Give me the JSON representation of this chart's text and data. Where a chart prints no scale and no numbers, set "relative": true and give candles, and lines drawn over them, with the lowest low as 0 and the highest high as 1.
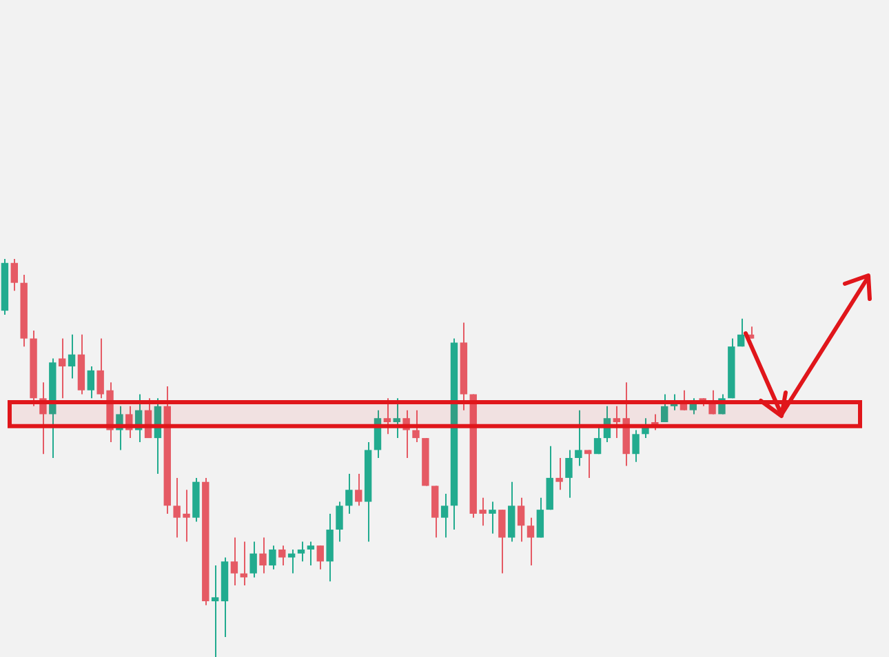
{
  "chart_data": {
    "type": "candlestick",
    "relative": true,
    "categories": [
      null,
      null,
      null,
      null,
      null,
      null,
      null,
      null,
      null,
      null,
      null,
      null,
      null,
      null,
      null,
      null,
      null,
      null,
      null,
      null,
      null,
      null,
      null,
      null,
      null,
      null,
      null,
      null,
      null,
      null,
      null,
      null,
      null,
      null,
      null,
      null,
      null,
      null,
      null,
      null,
      null,
      null,
      null,
      null,
      null,
      null,
      null,
      null,
      null,
      null,
      null,
      null,
      null,
      null,
      null,
      null,
      null,
      null,
      null,
      null,
      null,
      null,
      null,
      null,
      null,
      null,
      null,
      null,
      null,
      null,
      null,
      null,
      null,
      null,
      null,
      null,
      null,
      null,
      null
    ],
    "ohlc": [
      [
        0.87,
        1.0,
        0.86,
        0.99
      ],
      [
        0.99,
        1.0,
        0.92,
        0.94
      ],
      [
        0.94,
        0.96,
        0.78,
        0.8
      ],
      [
        0.8,
        0.82,
        0.63,
        0.65
      ],
      [
        0.65,
        0.69,
        0.51,
        0.61
      ],
      [
        0.61,
        0.75,
        0.5,
        0.74
      ],
      [
        0.75,
        0.8,
        0.65,
        0.73
      ],
      [
        0.73,
        0.81,
        0.7,
        0.76
      ],
      [
        0.76,
        0.81,
        0.66,
        0.67
      ],
      [
        0.67,
        0.73,
        0.65,
        0.72
      ],
      [
        0.72,
        0.8,
        0.65,
        0.66
      ],
      [
        0.67,
        0.69,
        0.54,
        0.57
      ],
      [
        0.57,
        0.63,
        0.52,
        0.61
      ],
      [
        0.61,
        0.63,
        0.55,
        0.57
      ],
      [
        0.57,
        0.66,
        0.54,
        0.62
      ],
      [
        0.62,
        0.65,
        0.55,
        0.55
      ],
      [
        0.55,
        0.65,
        0.46,
        0.63
      ],
      [
        0.63,
        0.68,
        0.36,
        0.38
      ],
      [
        0.38,
        0.45,
        0.3,
        0.35
      ],
      [
        0.36,
        0.42,
        0.29,
        0.35
      ],
      [
        0.35,
        0.45,
        0.34,
        0.44
      ],
      [
        0.44,
        0.45,
        0.13,
        0.14
      ],
      [
        0.14,
        0.23,
        0.0,
        0.15
      ],
      [
        0.14,
        0.25,
        0.05,
        0.24
      ],
      [
        0.24,
        0.3,
        0.18,
        0.21
      ],
      [
        0.21,
        0.29,
        0.18,
        0.2
      ],
      [
        0.21,
        0.29,
        0.2,
        0.26
      ],
      [
        0.26,
        0.3,
        0.21,
        0.23
      ],
      [
        0.23,
        0.28,
        0.22,
        0.27
      ],
      [
        0.27,
        0.28,
        0.23,
        0.25
      ],
      [
        0.25,
        0.27,
        0.21,
        0.26
      ],
      [
        0.26,
        0.29,
        0.24,
        0.27
      ],
      [
        0.27,
        0.29,
        0.23,
        0.28
      ],
      [
        0.28,
        0.28,
        0.22,
        0.24
      ],
      [
        0.24,
        0.36,
        0.19,
        0.32
      ],
      [
        0.32,
        0.39,
        0.29,
        0.38
      ],
      [
        0.38,
        0.46,
        0.36,
        0.42
      ],
      [
        0.42,
        0.46,
        0.38,
        0.39
      ],
      [
        0.39,
        0.54,
        0.29,
        0.52
      ],
      [
        0.52,
        0.62,
        0.5,
        0.6
      ],
      [
        0.6,
        0.65,
        0.56,
        0.59
      ],
      [
        0.59,
        0.65,
        0.55,
        0.6
      ],
      [
        0.6,
        0.62,
        0.5,
        0.57
      ],
      [
        0.57,
        0.62,
        0.54,
        0.55
      ],
      [
        0.55,
        0.55,
        0.43,
        0.43
      ],
      [
        0.43,
        0.43,
        0.3,
        0.35
      ],
      [
        0.35,
        0.41,
        0.3,
        0.38
      ],
      [
        0.38,
        0.8,
        0.32,
        0.79
      ],
      [
        0.79,
        0.84,
        0.62,
        0.66
      ],
      [
        0.66,
        0.66,
        0.35,
        0.36
      ],
      [
        0.37,
        0.4,
        0.33,
        0.36
      ],
      [
        0.36,
        0.39,
        0.31,
        0.37
      ],
      [
        0.37,
        0.37,
        0.21,
        0.3
      ],
      [
        0.3,
        0.44,
        0.29,
        0.38
      ],
      [
        0.38,
        0.4,
        0.29,
        0.33
      ],
      [
        0.33,
        0.35,
        0.23,
        0.3
      ],
      [
        0.3,
        0.4,
        0.3,
        0.37
      ],
      [
        0.37,
        0.53,
        0.37,
        0.45
      ],
      [
        0.45,
        0.5,
        0.42,
        0.44
      ],
      [
        0.45,
        0.52,
        0.4,
        0.5
      ],
      [
        0.5,
        0.62,
        0.48,
        0.52
      ],
      [
        0.52,
        0.52,
        0.45,
        0.51
      ],
      [
        0.51,
        0.58,
        0.51,
        0.55
      ],
      [
        0.55,
        0.63,
        0.54,
        0.6
      ],
      [
        0.6,
        0.63,
        0.55,
        0.59
      ],
      [
        0.6,
        0.69,
        0.48,
        0.51
      ],
      [
        0.51,
        0.57,
        0.49,
        0.56
      ],
      [
        0.56,
        0.6,
        0.55,
        0.58
      ],
      [
        0.59,
        0.61,
        0.57,
        0.58
      ],
      [
        0.59,
        0.66,
        0.59,
        0.63
      ],
      [
        0.63,
        0.66,
        0.62,
        0.64
      ],
      [
        0.64,
        0.67,
        0.62,
        0.62
      ],
      [
        0.62,
        0.65,
        0.61,
        0.64
      ],
      [
        0.65,
        0.65,
        0.63,
        0.64
      ],
      [
        0.64,
        0.67,
        0.61,
        0.61
      ],
      [
        0.61,
        0.66,
        0.61,
        0.65
      ],
      [
        0.65,
        0.8,
        0.65,
        0.78
      ],
      [
        0.78,
        0.85,
        0.78,
        0.81
      ],
      [
        0.81,
        0.83,
        0.8,
        0.8
      ]
    ],
    "colors": [
      "#22ab8f",
      "#e55a64",
      "#e55a64",
      "#e55a64",
      "#e55a64",
      "#22ab8f",
      "#e55a64",
      "#22ab8f",
      "#e55a64",
      "#22ab8f",
      "#e55a64",
      "#e55a64",
      "#22ab8f",
      "#e55a64",
      "#22ab8f",
      "#e55a64",
      "#22ab8f",
      "#e55a64",
      "#e55a64",
      "#e55a64",
      "#22ab8f",
      "#e55a64",
      "#22ab8f",
      "#22ab8f",
      "#e55a64",
      "#e55a64",
      "#22ab8f",
      "#e55a64",
      "#22ab8f",
      "#e55a64",
      "#22ab8f",
      "#22ab8f",
      "#22ab8f",
      "#e55a64",
      "#22ab8f",
      "#22ab8f",
      "#22ab8f",
      "#e55a64",
      "#22ab8f",
      "#22ab8f",
      "#e55a64",
      "#22ab8f",
      "#e55a64",
      "#e55a64",
      "#e55a64",
      "#e55a64",
      "#22ab8f",
      "#22ab8f",
      "#e55a64",
      "#e55a64",
      "#e55a64",
      "#22ab8f",
      "#e55a64",
      "#22ab8f",
      "#e55a64",
      "#e55a64",
      "#22ab8f",
      "#22ab8f",
      "#e55a64",
      "#22ab8f",
      "#22ab8f",
      "#e55a64",
      "#22ab8f",
      "#22ab8f",
      "#e55a64",
      "#e55a64",
      "#22ab8f",
      "#22ab8f",
      "#e55a64",
      "#22ab8f",
      "#22ab8f",
      "#e55a64",
      "#22ab8f",
      "#e55a64",
      "#e55a64",
      "#22ab8f",
      "#22ab8f",
      "#22ab8f",
      "#e55a64"
    ],
    "bands": [
      {
        "axis": "y",
        "from": 0.58,
        "to": 0.64,
        "color": "#e0161b"
      }
    ]
  }
}
